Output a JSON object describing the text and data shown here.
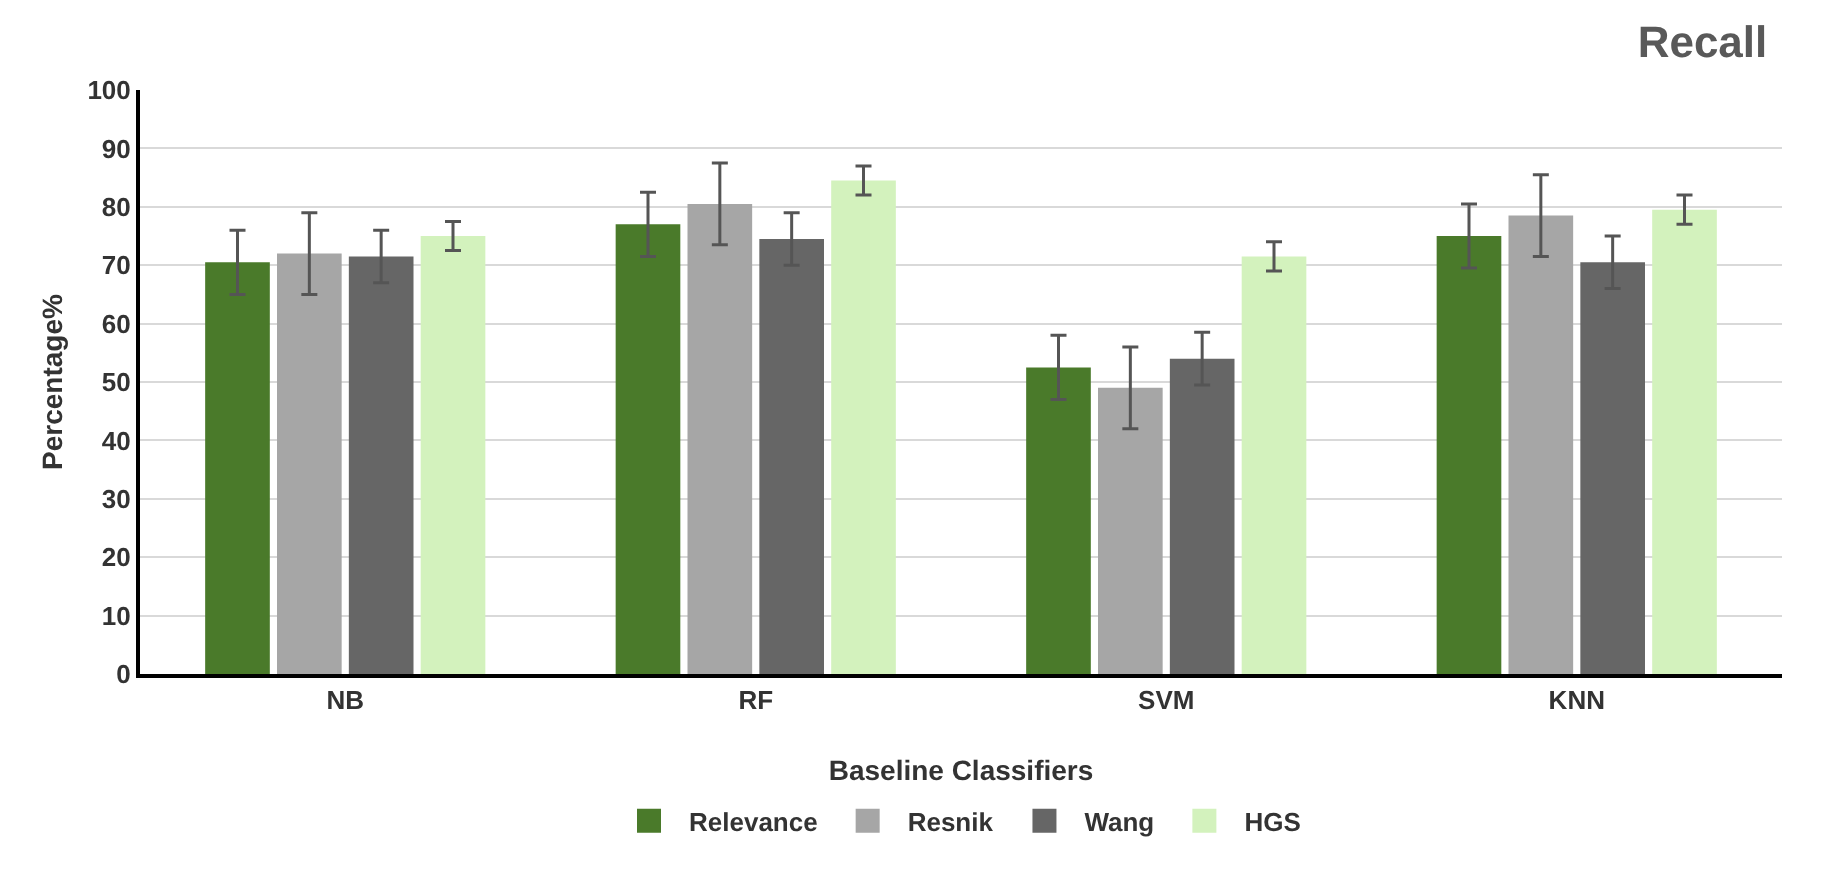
{
  "chart_data": {
    "type": "bar",
    "title": "Recall",
    "xlabel": "Baseline Classifiers",
    "ylabel": "Percentage%",
    "categories": [
      "NB",
      "RF",
      "SVM",
      "KNN"
    ],
    "series": [
      {
        "name": "Relevance",
        "color": "#4a7a2a",
        "values": [
          70.5,
          77,
          52.5,
          75
        ],
        "errors": [
          5.5,
          5.5,
          5.5,
          5.5
        ]
      },
      {
        "name": "Resnik",
        "color": "#a6a6a6",
        "values": [
          72,
          80.5,
          49,
          78.5
        ],
        "errors": [
          7,
          7,
          7,
          7
        ]
      },
      {
        "name": "Wang",
        "color": "#666666",
        "values": [
          71.5,
          74.5,
          54,
          70.5
        ],
        "errors": [
          4.5,
          4.5,
          4.5,
          4.5
        ]
      },
      {
        "name": "HGS",
        "color": "#d3f2bd",
        "values": [
          75,
          84.5,
          71.5,
          79.5
        ],
        "errors": [
          2.5,
          2.5,
          2.5,
          2.5
        ]
      }
    ],
    "ylim": [
      0,
      100
    ],
    "yticks": [
      0,
      10,
      20,
      30,
      40,
      50,
      60,
      70,
      80,
      90,
      100
    ],
    "grid": "y",
    "legend": "bottom"
  }
}
